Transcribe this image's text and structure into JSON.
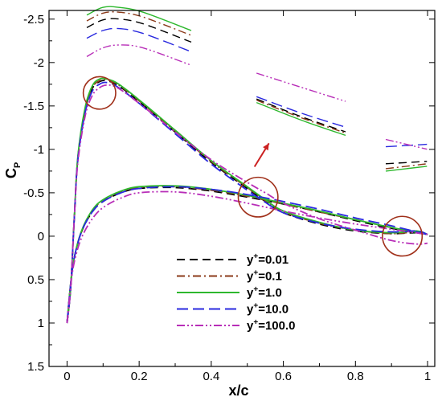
{
  "chart_data": {
    "type": "line",
    "xlabel": "x/c",
    "ylabel": "C",
    "ylabel_sub": "P",
    "xlim": [
      -0.05,
      1.02
    ],
    "ylim": [
      1.5,
      -2.6
    ],
    "y_inverted": true,
    "xticks": [
      "0",
      "0.2",
      "0.4",
      "0.6",
      "0.8",
      "1"
    ],
    "yticks": [
      "-2.5",
      "-2",
      "-1.5",
      "-1",
      "-0.5",
      "0",
      "0.5",
      "1",
      "1.5"
    ],
    "xtick_values": [
      0,
      0.2,
      0.4,
      0.6,
      0.8,
      1.0
    ],
    "ytick_values": [
      -2.5,
      -2,
      -1.5,
      -1,
      -0.5,
      0,
      0.5,
      1,
      1.5
    ],
    "legend_position": "bottom-center",
    "series": [
      {
        "name": "y+=0.01",
        "label_base": "y",
        "label_sup": "+",
        "label_rest": "=0.01",
        "color": "#000000",
        "dash": "10,6",
        "upper": [
          [
            0.0,
            1.0
          ],
          [
            0.01,
            0.6
          ],
          [
            0.02,
            -0.2
          ],
          [
            0.03,
            -0.9
          ],
          [
            0.05,
            -1.45
          ],
          [
            0.07,
            -1.7
          ],
          [
            0.09,
            -1.78
          ],
          [
            0.11,
            -1.79
          ],
          [
            0.14,
            -1.74
          ],
          [
            0.2,
            -1.55
          ],
          [
            0.3,
            -1.2
          ],
          [
            0.4,
            -0.85
          ],
          [
            0.5,
            -0.55
          ],
          [
            0.55,
            -0.4
          ],
          [
            0.6,
            -0.27
          ],
          [
            0.7,
            -0.14
          ],
          [
            0.8,
            -0.06
          ],
          [
            0.9,
            -0.03
          ],
          [
            0.97,
            -0.04
          ],
          [
            1.0,
            -0.02
          ]
        ],
        "lower": [
          [
            0.0,
            1.0
          ],
          [
            0.01,
            0.55
          ],
          [
            0.02,
            0.25
          ],
          [
            0.04,
            -0.05
          ],
          [
            0.07,
            -0.28
          ],
          [
            0.1,
            -0.4
          ],
          [
            0.15,
            -0.5
          ],
          [
            0.2,
            -0.55
          ],
          [
            0.3,
            -0.56
          ],
          [
            0.4,
            -0.52
          ],
          [
            0.5,
            -0.45
          ],
          [
            0.6,
            -0.37
          ],
          [
            0.7,
            -0.28
          ],
          [
            0.8,
            -0.18
          ],
          [
            0.9,
            -0.09
          ],
          [
            1.0,
            -0.02
          ]
        ]
      },
      {
        "name": "y+=0.1",
        "label_base": "y",
        "label_sup": "+",
        "label_rest": "=0.1",
        "color": "#8b3a1a",
        "dash": "10,4,2,4",
        "upper": [
          [
            0.0,
            1.0
          ],
          [
            0.01,
            0.6
          ],
          [
            0.02,
            -0.2
          ],
          [
            0.03,
            -0.9
          ],
          [
            0.05,
            -1.45
          ],
          [
            0.07,
            -1.71
          ],
          [
            0.09,
            -1.79
          ],
          [
            0.11,
            -1.8
          ],
          [
            0.14,
            -1.75
          ],
          [
            0.2,
            -1.56
          ],
          [
            0.3,
            -1.21
          ],
          [
            0.4,
            -0.86
          ],
          [
            0.5,
            -0.56
          ],
          [
            0.55,
            -0.41
          ],
          [
            0.6,
            -0.28
          ],
          [
            0.7,
            -0.15
          ],
          [
            0.8,
            -0.07
          ],
          [
            0.9,
            -0.03
          ],
          [
            0.97,
            -0.05
          ],
          [
            1.0,
            -0.02
          ]
        ],
        "lower": [
          [
            0.0,
            1.0
          ],
          [
            0.01,
            0.55
          ],
          [
            0.02,
            0.25
          ],
          [
            0.04,
            -0.05
          ],
          [
            0.07,
            -0.29
          ],
          [
            0.1,
            -0.41
          ],
          [
            0.15,
            -0.51
          ],
          [
            0.2,
            -0.56
          ],
          [
            0.3,
            -0.57
          ],
          [
            0.4,
            -0.53
          ],
          [
            0.5,
            -0.46
          ],
          [
            0.6,
            -0.37
          ],
          [
            0.7,
            -0.28
          ],
          [
            0.8,
            -0.19
          ],
          [
            0.9,
            -0.1
          ],
          [
            1.0,
            -0.02
          ]
        ]
      },
      {
        "name": "y+=1.0",
        "label_base": "y",
        "label_sup": "+",
        "label_rest": "=1.0",
        "color": "#2eb82e",
        "dash": "",
        "upper": [
          [
            0.0,
            1.0
          ],
          [
            0.01,
            0.6
          ],
          [
            0.02,
            -0.2
          ],
          [
            0.03,
            -0.92
          ],
          [
            0.05,
            -1.48
          ],
          [
            0.07,
            -1.73
          ],
          [
            0.09,
            -1.81
          ],
          [
            0.11,
            -1.81
          ],
          [
            0.14,
            -1.76
          ],
          [
            0.2,
            -1.57
          ],
          [
            0.3,
            -1.22
          ],
          [
            0.4,
            -0.87
          ],
          [
            0.5,
            -0.57
          ],
          [
            0.55,
            -0.42
          ],
          [
            0.6,
            -0.29
          ],
          [
            0.7,
            -0.16
          ],
          [
            0.8,
            -0.07
          ],
          [
            0.9,
            -0.04
          ],
          [
            0.97,
            -0.06
          ],
          [
            1.0,
            -0.02
          ]
        ],
        "lower": [
          [
            0.0,
            1.0
          ],
          [
            0.01,
            0.55
          ],
          [
            0.02,
            0.25
          ],
          [
            0.04,
            -0.06
          ],
          [
            0.07,
            -0.3
          ],
          [
            0.1,
            -0.42
          ],
          [
            0.15,
            -0.52
          ],
          [
            0.2,
            -0.57
          ],
          [
            0.3,
            -0.58
          ],
          [
            0.4,
            -0.54
          ],
          [
            0.5,
            -0.47
          ],
          [
            0.6,
            -0.38
          ],
          [
            0.7,
            -0.29
          ],
          [
            0.8,
            -0.19
          ],
          [
            0.9,
            -0.1
          ],
          [
            1.0,
            -0.02
          ]
        ]
      },
      {
        "name": "y+=10.0",
        "label_base": "y",
        "label_sup": "+",
        "label_rest": "=10.0",
        "color": "#2a2adf",
        "dash": "14,6",
        "upper": [
          [
            0.0,
            1.0
          ],
          [
            0.01,
            0.6
          ],
          [
            0.02,
            -0.2
          ],
          [
            0.03,
            -0.88
          ],
          [
            0.05,
            -1.42
          ],
          [
            0.07,
            -1.67
          ],
          [
            0.09,
            -1.75
          ],
          [
            0.11,
            -1.77
          ],
          [
            0.14,
            -1.72
          ],
          [
            0.2,
            -1.53
          ],
          [
            0.3,
            -1.18
          ],
          [
            0.4,
            -0.83
          ],
          [
            0.5,
            -0.53
          ],
          [
            0.55,
            -0.39
          ],
          [
            0.6,
            -0.27
          ],
          [
            0.7,
            -0.15
          ],
          [
            0.8,
            -0.08
          ],
          [
            0.9,
            -0.05
          ],
          [
            0.97,
            -0.06
          ],
          [
            1.0,
            -0.02
          ]
        ],
        "lower": [
          [
            0.0,
            1.0
          ],
          [
            0.01,
            0.55
          ],
          [
            0.02,
            0.25
          ],
          [
            0.04,
            -0.05
          ],
          [
            0.07,
            -0.28
          ],
          [
            0.1,
            -0.4
          ],
          [
            0.15,
            -0.5
          ],
          [
            0.2,
            -0.55
          ],
          [
            0.3,
            -0.57
          ],
          [
            0.4,
            -0.54
          ],
          [
            0.5,
            -0.48
          ],
          [
            0.6,
            -0.4
          ],
          [
            0.7,
            -0.31
          ],
          [
            0.8,
            -0.21
          ],
          [
            0.9,
            -0.12
          ],
          [
            1.0,
            -0.02
          ]
        ]
      },
      {
        "name": "y+=100.0",
        "label_base": "y",
        "label_sup": "+",
        "label_rest": "=100.0",
        "color": "#b82eb8",
        "dash": "10,3,2,3,2,3",
        "upper": [
          [
            0.0,
            1.0
          ],
          [
            0.01,
            0.6
          ],
          [
            0.02,
            -0.2
          ],
          [
            0.03,
            -0.85
          ],
          [
            0.05,
            -1.38
          ],
          [
            0.07,
            -1.62
          ],
          [
            0.09,
            -1.71
          ],
          [
            0.11,
            -1.74
          ],
          [
            0.14,
            -1.71
          ],
          [
            0.2,
            -1.53
          ],
          [
            0.3,
            -1.2
          ],
          [
            0.4,
            -0.88
          ],
          [
            0.5,
            -0.62
          ],
          [
            0.55,
            -0.5
          ],
          [
            0.6,
            -0.38
          ],
          [
            0.7,
            -0.2
          ],
          [
            0.8,
            -0.07
          ],
          [
            0.9,
            0.05
          ],
          [
            0.97,
            0.09
          ],
          [
            1.0,
            0.08
          ]
        ],
        "lower": [
          [
            0.0,
            1.0
          ],
          [
            0.01,
            0.58
          ],
          [
            0.02,
            0.3
          ],
          [
            0.04,
            0.02
          ],
          [
            0.07,
            -0.2
          ],
          [
            0.1,
            -0.33
          ],
          [
            0.15,
            -0.44
          ],
          [
            0.2,
            -0.5
          ],
          [
            0.3,
            -0.51
          ],
          [
            0.4,
            -0.46
          ],
          [
            0.5,
            -0.38
          ],
          [
            0.6,
            -0.29
          ],
          [
            0.7,
            -0.21
          ],
          [
            0.8,
            -0.14
          ],
          [
            0.9,
            -0.08
          ],
          [
            1.0,
            -0.02
          ]
        ]
      }
    ],
    "annotations": {
      "circles": [
        {
          "name": "leading-edge-circle",
          "x": 0.09,
          "y": -1.65,
          "r_x": 0.045
        },
        {
          "name": "mid-chord-circle",
          "x": 0.53,
          "y": -0.45,
          "r_x": 0.055
        },
        {
          "name": "trailing-edge-circle",
          "x": 0.93,
          "y": 0.0,
          "r_x": 0.055
        }
      ],
      "arrow": {
        "from": [
          0.52,
          -0.8
        ],
        "to": [
          0.56,
          -1.07
        ]
      },
      "circle_color": "#a0301a"
    }
  }
}
